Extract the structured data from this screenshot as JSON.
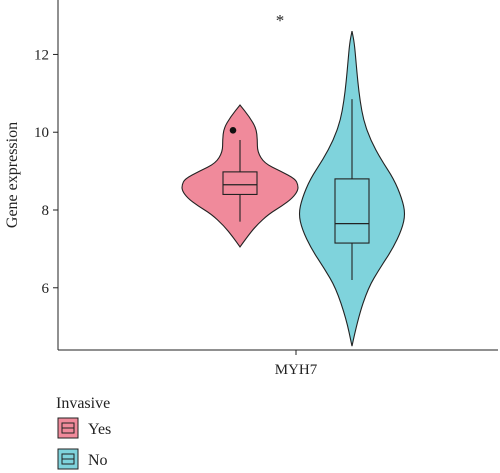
{
  "chart_data": {
    "type": "violin",
    "xlabel": "",
    "ylabel": "Gene expression",
    "ylim": [
      4.4,
      13.4
    ],
    "yticks": [
      6,
      8,
      10,
      12
    ],
    "categories": [
      "MYH7"
    ],
    "annotation": "*",
    "legend": {
      "title": "Invasive",
      "position": "bottom-left"
    },
    "series": [
      {
        "name": "Yes",
        "color": "#f08a9b",
        "violin": {
          "y": [
            7.05,
            7.3,
            7.6,
            7.9,
            8.1,
            8.3,
            8.5,
            8.65,
            8.8,
            9.0,
            9.2,
            9.5,
            9.8,
            10.1,
            10.4,
            10.7
          ],
          "density": [
            0.0,
            0.12,
            0.28,
            0.5,
            0.72,
            0.9,
            1.0,
            1.0,
            0.95,
            0.7,
            0.42,
            0.3,
            0.3,
            0.28,
            0.16,
            0.0
          ]
        },
        "box": {
          "whisker_low": 7.7,
          "q1": 8.4,
          "median": 8.65,
          "q3": 8.98,
          "whisker_high": 9.8
        },
        "outliers": [
          10.05
        ]
      },
      {
        "name": "No",
        "color": "#7fd3dc",
        "violin": {
          "y": [
            4.5,
            5.2,
            6.0,
            6.5,
            7.0,
            7.5,
            7.9,
            8.3,
            8.8,
            9.3,
            9.8,
            10.3,
            10.8,
            11.3,
            11.8,
            12.3,
            12.6
          ],
          "density": [
            0.0,
            0.1,
            0.28,
            0.48,
            0.7,
            0.86,
            0.92,
            0.86,
            0.72,
            0.5,
            0.32,
            0.2,
            0.14,
            0.1,
            0.07,
            0.04,
            0.0
          ]
        },
        "box": {
          "whisker_low": 6.2,
          "q1": 7.15,
          "median": 7.65,
          "q3": 8.8,
          "whisker_high": 10.85
        },
        "outliers": []
      }
    ]
  },
  "colors": {
    "axis": "#222222",
    "outline": "#222222"
  }
}
